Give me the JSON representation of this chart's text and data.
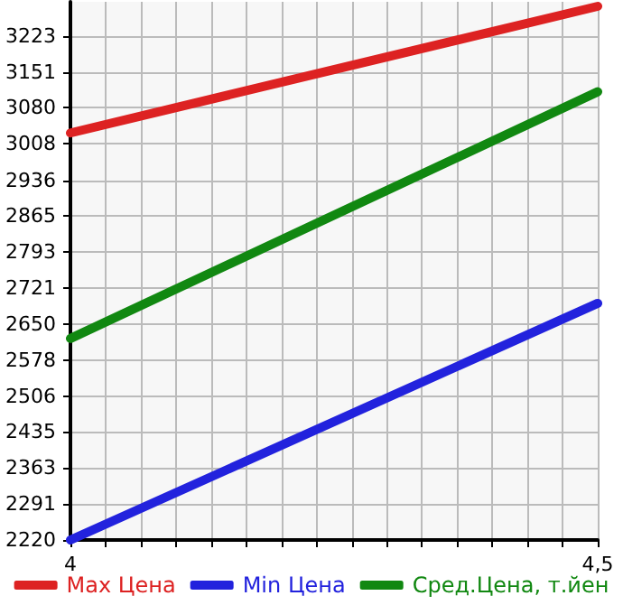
{
  "chart_data": {
    "type": "line",
    "x": [
      4,
      4.5
    ],
    "series": [
      {
        "name": "Max Цена",
        "color": "#dd2222",
        "values": [
          3030,
          3282
        ]
      },
      {
        "name": "Min Цена",
        "color": "#2222dd",
        "values": [
          2220,
          2691
        ]
      },
      {
        "name": "Сред.Цена, т.йен",
        "color": "#118811",
        "values": [
          2621,
          3112
        ]
      }
    ],
    "xlim": [
      4,
      4.5
    ],
    "xticks": [
      {
        "value": 4,
        "label": "4"
      },
      {
        "value": 4.0333,
        "label": null
      },
      {
        "value": 4.0667,
        "label": null
      },
      {
        "value": 4.1,
        "label": null
      },
      {
        "value": 4.1333,
        "label": null
      },
      {
        "value": 4.1667,
        "label": null
      },
      {
        "value": 4.2,
        "label": null
      },
      {
        "value": 4.2333,
        "label": null
      },
      {
        "value": 4.2667,
        "label": null
      },
      {
        "value": 4.3,
        "label": null
      },
      {
        "value": 4.3333,
        "label": null
      },
      {
        "value": 4.3667,
        "label": null
      },
      {
        "value": 4.4,
        "label": null
      },
      {
        "value": 4.4333,
        "label": null
      },
      {
        "value": 4.4667,
        "label": null
      },
      {
        "value": 4.5,
        "label": "4,5"
      }
    ],
    "ylim": [
      2220,
      3291
    ],
    "yticks": [
      2220,
      2291,
      2363,
      2435,
      2506,
      2578,
      2650,
      2721,
      2793,
      2865,
      2936,
      3008,
      3080,
      3151,
      3223
    ],
    "grid": true,
    "legend": "bottom",
    "marker": "none",
    "line_style": "solid"
  }
}
